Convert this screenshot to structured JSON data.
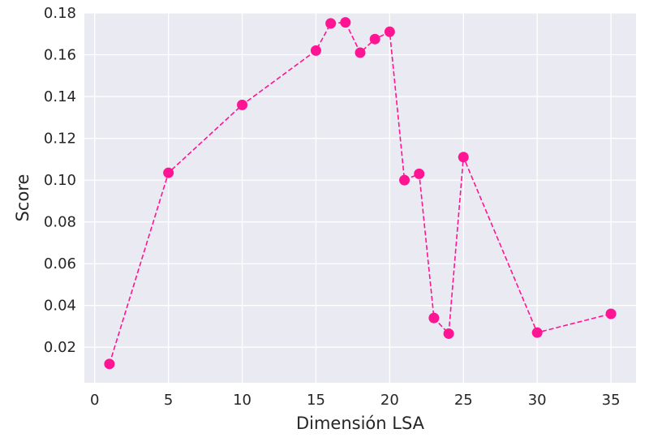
{
  "chart_data": {
    "type": "line",
    "title": "",
    "xlabel": "Dimensión LSA",
    "ylabel": "Score",
    "xlim": [
      -0.7,
      36.7
    ],
    "ylim": [
      0.003,
      0.18
    ],
    "x_ticks": [
      0,
      5,
      10,
      15,
      20,
      25,
      30,
      35
    ],
    "x_tick_labels": [
      "0",
      "5",
      "10",
      "15",
      "20",
      "25",
      "30",
      "35"
    ],
    "y_ticks": [
      0.02,
      0.04,
      0.06,
      0.08,
      0.1,
      0.12,
      0.14,
      0.16,
      0.18
    ],
    "y_tick_labels": [
      "0.02",
      "0.04",
      "0.06",
      "0.08",
      "0.10",
      "0.12",
      "0.14",
      "0.16",
      "0.18"
    ],
    "grid": true,
    "legend": false,
    "series": [
      {
        "color": "#ff1493",
        "line_style": "dashed",
        "marker": "circle",
        "x": [
          1,
          5,
          10,
          15,
          16,
          17,
          18,
          19,
          20,
          21,
          22,
          23,
          24,
          25,
          30,
          35
        ],
        "y": [
          0.012,
          0.1035,
          0.136,
          0.162,
          0.175,
          0.1755,
          0.161,
          0.1675,
          0.171,
          0.1,
          0.103,
          0.034,
          0.0265,
          0.111,
          0.027,
          0.036
        ]
      }
    ],
    "colors": {
      "plot_background": "#eaeaf2",
      "grid": "#ffffff",
      "text": "#262626"
    }
  }
}
